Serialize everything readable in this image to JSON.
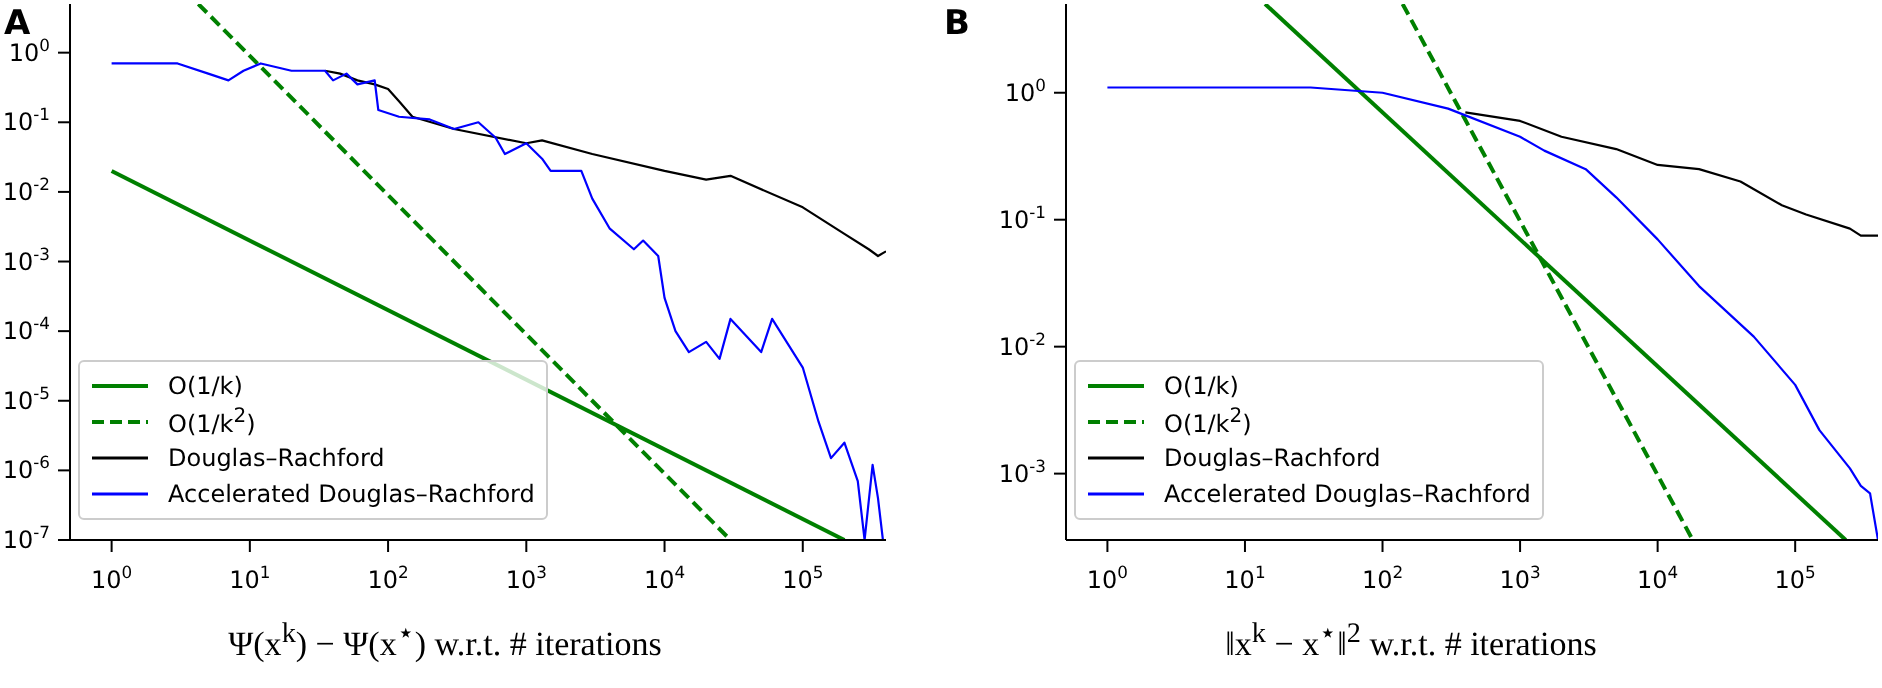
{
  "chart_data": [
    {
      "type": "line",
      "title": "A",
      "xlabel": "Ψ(x$^{k}$) − Ψ(x$^{⋆}$) w.r.t. # iterations",
      "log": "xy",
      "legend": "bottom left",
      "xlim": [
        0.5,
        400000
      ],
      "ylim": [
        1e-07,
        5
      ],
      "xticks": [
        {
          "value": 1,
          "label": "10$^{0}$"
        },
        {
          "value": 10,
          "label": "10$^{1}$"
        },
        {
          "value": 100,
          "label": "10$^{2}$"
        },
        {
          "value": 1000,
          "label": "10$^{3}$"
        },
        {
          "value": 10000,
          "label": "10$^{4}$"
        },
        {
          "value": 100000,
          "label": "10$^{5}$"
        }
      ],
      "yticks": [
        {
          "value": 1,
          "label": "10$^{0}$"
        },
        {
          "value": 0.1,
          "label": "10$^{-1}$"
        },
        {
          "value": 0.01,
          "label": "10$^{-2}$"
        },
        {
          "value": 0.001,
          "label": "10$^{-3}$"
        },
        {
          "value": 0.0001,
          "label": "10$^{-4}$"
        },
        {
          "value": 1e-05,
          "label": "10$^{-5}$"
        },
        {
          "value": 1e-06,
          "label": "10$^{-6}$"
        },
        {
          "value": 1e-07,
          "label": "10$^{-7}$"
        }
      ],
      "series": [
        {
          "name": "O(1/k)",
          "color": "#008000",
          "line_style": "solid",
          "x": [
            1,
            200000
          ],
          "values": [
            0.02,
            1e-07
          ]
        },
        {
          "name": "O(1/k$^{2}$)",
          "color": "#008000",
          "line_style": "dashed",
          "x": [
            4.24,
            30000
          ],
          "values": [
            5,
            1e-07
          ]
        },
        {
          "name": "Douglas–Rachford",
          "color": "#000000",
          "line_style": "solid",
          "x": [
            35,
            45,
            60,
            80,
            100,
            120,
            150,
            300,
            1000,
            1300,
            3000,
            10000,
            20000,
            30000,
            100000,
            200000,
            300000,
            350000,
            400000
          ],
          "values": [
            0.55,
            0.5,
            0.4,
            0.35,
            0.3,
            0.2,
            0.12,
            0.08,
            0.05,
            0.055,
            0.035,
            0.02,
            0.015,
            0.017,
            0.006,
            0.0025,
            0.0015,
            0.0012,
            0.0014
          ]
        },
        {
          "name": "Accelerated Douglas–Rachford",
          "color": "#0000ff",
          "line_style": "solid",
          "x": [
            1,
            3,
            5,
            7,
            9,
            12,
            20,
            35,
            40,
            50,
            60,
            80,
            85,
            120,
            200,
            300,
            450,
            600,
            700,
            800,
            1000,
            1300,
            1500,
            2500,
            3000,
            4000,
            6000,
            7000,
            9000,
            10000,
            12000,
            15000,
            20000,
            25000,
            30000,
            50000,
            60000,
            100000,
            130000,
            160000,
            200000,
            250000,
            280000,
            320000,
            350000,
            380000,
            400000
          ],
          "values": [
            0.7,
            0.7,
            0.5,
            0.4,
            0.55,
            0.7,
            0.55,
            0.55,
            0.4,
            0.5,
            0.35,
            0.4,
            0.15,
            0.12,
            0.11,
            0.08,
            0.1,
            0.06,
            0.035,
            0.04,
            0.05,
            0.03,
            0.02,
            0.02,
            0.008,
            0.003,
            0.0015,
            0.002,
            0.0012,
            0.0003,
            0.0001,
            5e-05,
            7e-05,
            4e-05,
            0.00015,
            5e-05,
            0.00015,
            3e-05,
            5e-06,
            1.5e-06,
            2.5e-06,
            7e-07,
            1e-07,
            1.2e-06,
            4e-07,
            1e-07,
            1e-07
          ]
        }
      ]
    },
    {
      "type": "line",
      "title": "B",
      "xlabel": "‖x$^{k}$ − x$^{⋆}$‖$^{2}$ w.r.t. # iterations",
      "log": "xy",
      "legend": "bottom left",
      "xlim": [
        0.5,
        400000
      ],
      "ylim": [
        0.0003,
        5
      ],
      "xticks": [
        {
          "value": 1,
          "label": "10$^{0}$"
        },
        {
          "value": 10,
          "label": "10$^{1}$"
        },
        {
          "value": 100,
          "label": "10$^{2}$"
        },
        {
          "value": 1000,
          "label": "10$^{3}$"
        },
        {
          "value": 10000,
          "label": "10$^{4}$"
        },
        {
          "value": 100000,
          "label": "10$^{5}$"
        }
      ],
      "yticks": [
        {
          "value": 1,
          "label": "10$^{0}$"
        },
        {
          "value": 0.1,
          "label": "10$^{-1}$"
        },
        {
          "value": 0.01,
          "label": "10$^{-2}$"
        },
        {
          "value": 0.001,
          "label": "10$^{-3}$"
        }
      ],
      "series": [
        {
          "name": "O(1/k)",
          "color": "#008000",
          "line_style": "solid",
          "x": [
            14,
            233000
          ],
          "values": [
            5,
            0.0003
          ]
        },
        {
          "name": "O(1/k$^{2}$)",
          "color": "#008000",
          "line_style": "dashed",
          "x": [
            140,
            18000
          ],
          "values": [
            5,
            0.0003
          ]
        },
        {
          "name": "Douglas–Rachford",
          "color": "#000000",
          "line_style": "solid",
          "x": [
            400,
            1000,
            2000,
            5000,
            10000,
            20000,
            40000,
            80000,
            120000,
            250000,
            300000,
            400000
          ],
          "values": [
            0.7,
            0.6,
            0.45,
            0.36,
            0.27,
            0.25,
            0.2,
            0.13,
            0.11,
            0.085,
            0.075,
            0.075
          ]
        },
        {
          "name": "Accelerated Douglas–Rachford",
          "color": "#0000ff",
          "line_style": "solid",
          "x": [
            1,
            30,
            100,
            300,
            1000,
            1500,
            3000,
            5000,
            10000,
            20000,
            50000,
            100000,
            150000,
            250000,
            300000,
            350000,
            400000
          ],
          "values": [
            1.1,
            1.1,
            1.0,
            0.75,
            0.45,
            0.35,
            0.25,
            0.15,
            0.07,
            0.03,
            0.012,
            0.005,
            0.0022,
            0.0011,
            0.0008,
            0.0007,
            0.0003
          ]
        }
      ]
    }
  ]
}
